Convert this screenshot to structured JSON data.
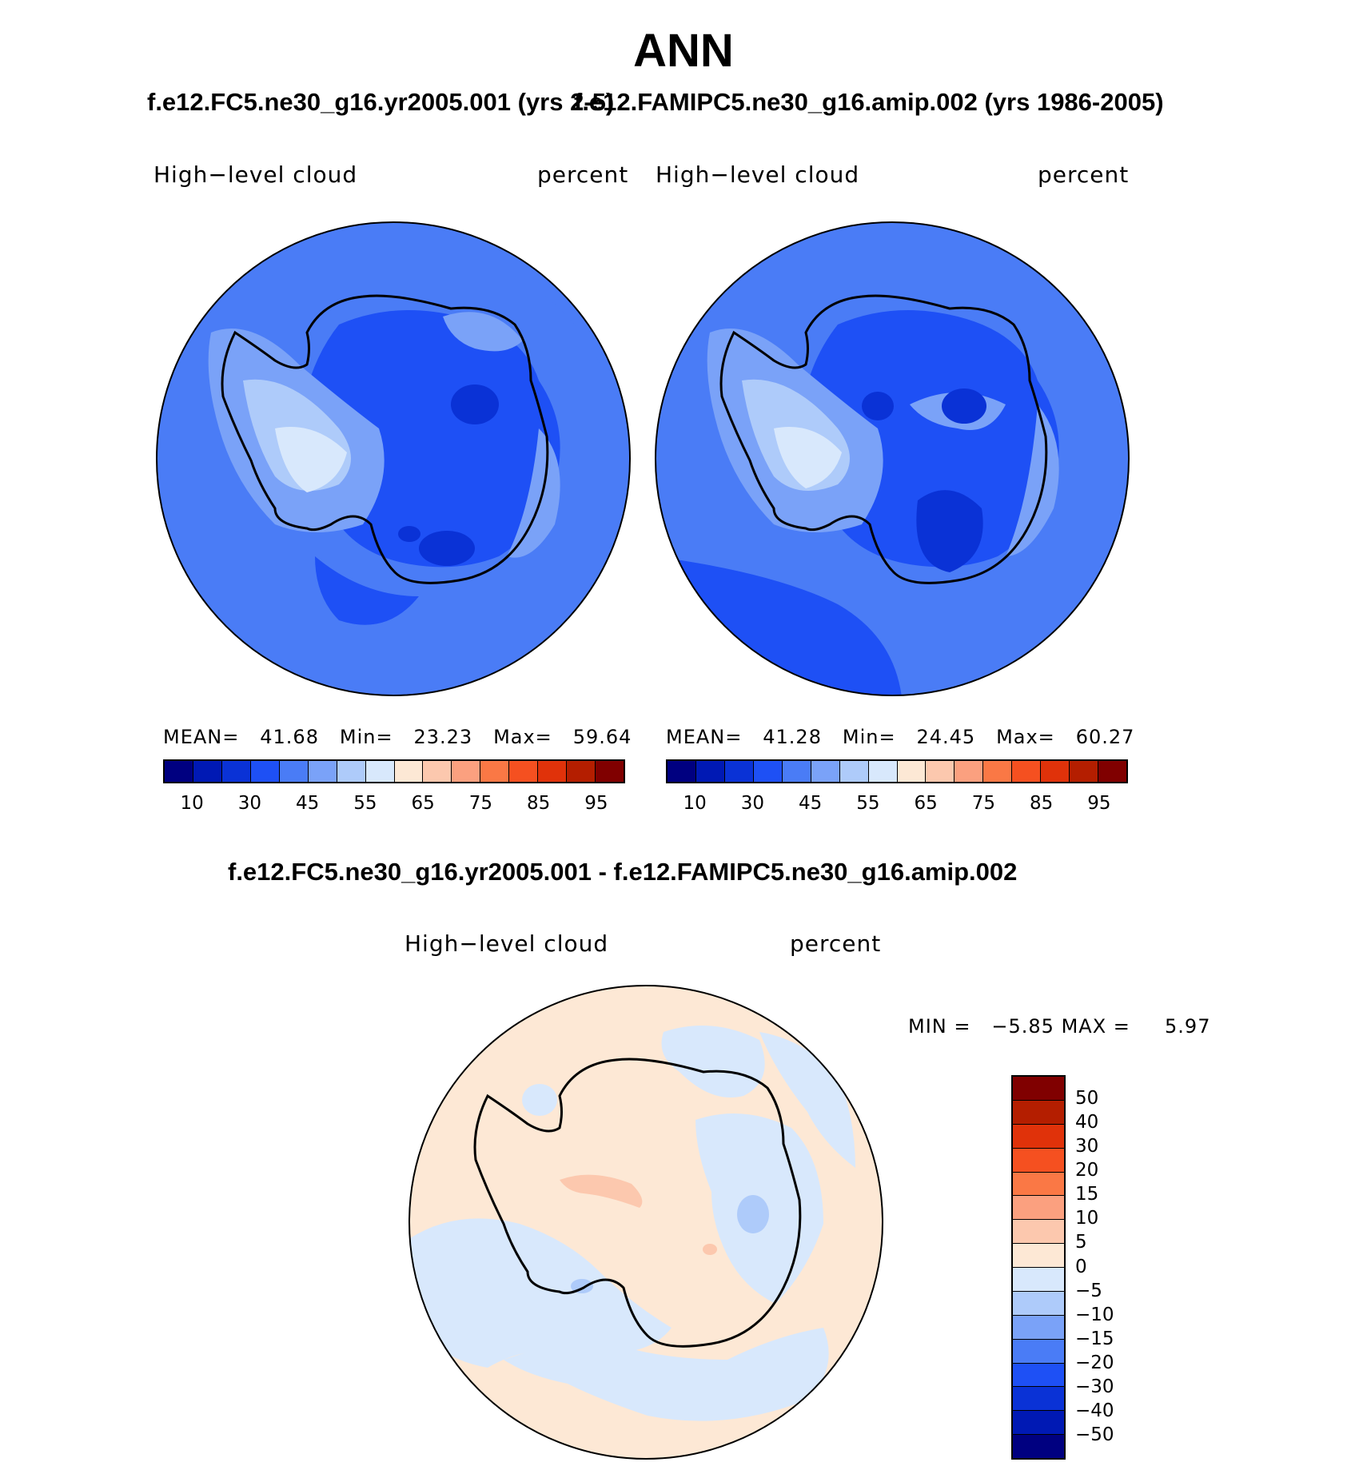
{
  "title": "ANN",
  "panels": [
    {
      "case_title": "f.e12.FC5.ne30_g16.yr2005.001 (yrs 2-5)",
      "variable": "High−level cloud",
      "units": "percent",
      "stats": {
        "mean_label": "MEAN=",
        "mean": "41.68",
        "min_label": "Min=",
        "min": "23.23",
        "max_label": "Max=",
        "max": "59.64"
      },
      "fill_color": "#4a7cf6"
    },
    {
      "case_title": "f.e12.FAMIPC5.ne30_g16.amip.002 (yrs 1986-2005)",
      "variable": "High−level cloud",
      "units": "percent",
      "stats": {
        "mean_label": "MEAN=",
        "mean": "41.28",
        "min_label": "Min=",
        "min": "24.45",
        "max_label": "Max=",
        "max": "60.27"
      },
      "fill_color": "#4a7cf6"
    }
  ],
  "colorbar": {
    "colors": [
      "#000080",
      "#0019b4",
      "#0a32d6",
      "#1e50f5",
      "#4a7cf6",
      "#7aa2f8",
      "#aecbfa",
      "#d8e8fc",
      "#fde8d5",
      "#fcc8ae",
      "#fba07f",
      "#fa7845",
      "#f55020",
      "#e0320a",
      "#b41e00",
      "#800000"
    ],
    "tick_labels": [
      "10",
      "30",
      "45",
      "55",
      "65",
      "75",
      "85",
      "95"
    ]
  },
  "difference": {
    "title": "f.e12.FC5.ne30_g16.yr2005.001 - f.e12.FAMIPC5.ne30_g16.amip.002",
    "variable": "High−level cloud",
    "units": "percent",
    "min_label": "MIN =",
    "min": "−5.85",
    "max_label": "MAX =",
    "max": "5.97",
    "colorbar": {
      "colors": [
        "#800000",
        "#b41e00",
        "#e0320a",
        "#f55020",
        "#fa7845",
        "#fba07f",
        "#fcc8ae",
        "#fde8d5",
        "#d8e8fc",
        "#aecbfa",
        "#7aa2f8",
        "#4a7cf6",
        "#1e50f5",
        "#0a32d6",
        "#0019b4",
        "#000080"
      ],
      "tick_labels": [
        "50",
        "40",
        "30",
        "20",
        "15",
        "10",
        "5",
        "0",
        "−5",
        "−10",
        "−15",
        "−20",
        "−30",
        "−40",
        "−50"
      ]
    },
    "fill_color": "#fde8d5"
  }
}
